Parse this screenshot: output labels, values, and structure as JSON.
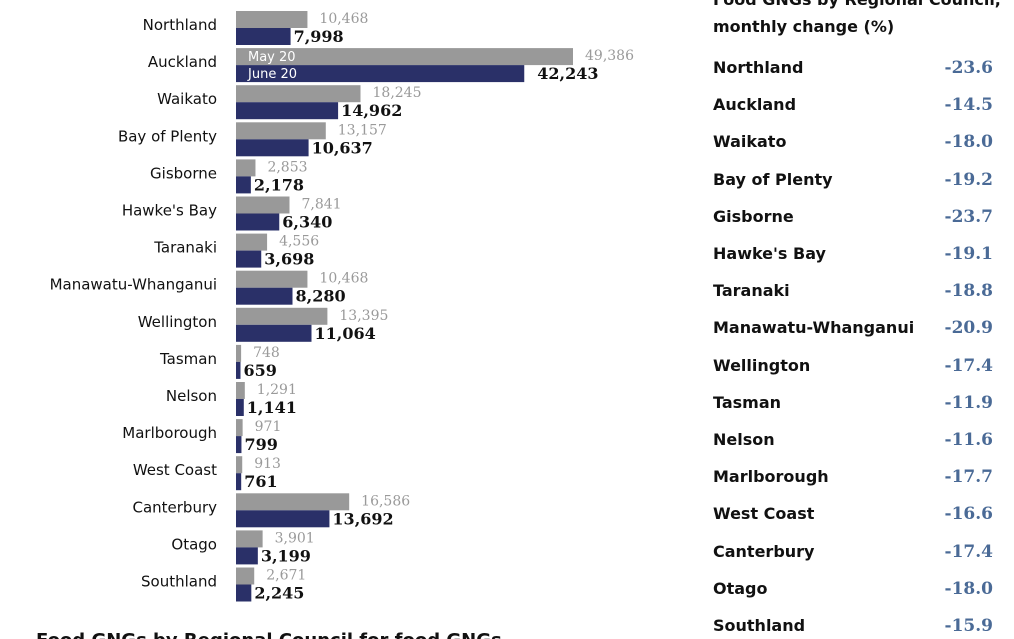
{
  "chart_data": {
    "type": "bar",
    "orientation": "horizontal",
    "categories": [
      "Northland",
      "Auckland",
      "Waikato",
      "Bay of Plenty",
      "Gisborne",
      "Hawke's Bay",
      "Taranaki",
      "Manawatu-Whanganui",
      "Wellington",
      "Tasman",
      "Nelson",
      "Marlborough",
      "West Coast",
      "Canterbury",
      "Otago",
      "Southland"
    ],
    "series": [
      {
        "name": "May 20",
        "values": [
          10468,
          49386,
          18245,
          13157,
          2853,
          7841,
          4556,
          10468,
          13395,
          748,
          1291,
          971,
          913,
          16586,
          3901,
          2671
        ],
        "labels": [
          "10,468",
          "49,386",
          "18,245",
          "13,157",
          "2,853",
          "7,841",
          "4,556",
          "10,468",
          "13,395",
          "748",
          "1,291",
          "971",
          "913",
          "16,586",
          "3,901",
          "2,671"
        ],
        "color": "#999999"
      },
      {
        "name": "June 20",
        "values": [
          7998,
          42243,
          14962,
          10637,
          2178,
          6340,
          3698,
          8280,
          11064,
          659,
          1141,
          799,
          761,
          13692,
          3199,
          2245
        ],
        "labels": [
          "7,998",
          "42,243",
          "14,962",
          "10,637",
          "2,178",
          "6,340",
          "3,698",
          "8,280",
          "11,064",
          "659",
          "1,141",
          "799",
          "761",
          "13,692",
          "3,199",
          "2,245"
        ],
        "color": "#2a3068"
      }
    ],
    "xlim": [
      0,
      49386
    ],
    "grid": false,
    "legend": "inside-bars"
  },
  "change_table": {
    "title": "Food GNGs by Regional Council,\nmonthly change (%)",
    "value_color": "#4a6a96",
    "rows": [
      {
        "name": "Northland",
        "value": "-23.6"
      },
      {
        "name": "Auckland",
        "value": "-14.5"
      },
      {
        "name": "Waikato",
        "value": "-18.0"
      },
      {
        "name": "Bay of Plenty",
        "value": "-19.2"
      },
      {
        "name": "Gisborne",
        "value": "-23.7"
      },
      {
        "name": "Hawke's Bay",
        "value": "-19.1"
      },
      {
        "name": "Taranaki",
        "value": "-18.8"
      },
      {
        "name": "Manawatu-Whanganui",
        "value": "-20.9"
      },
      {
        "name": "Wellington",
        "value": "-17.4"
      },
      {
        "name": "Tasman",
        "value": "-11.9"
      },
      {
        "name": "Nelson",
        "value": "-11.6"
      },
      {
        "name": "Marlborough",
        "value": "-17.7"
      },
      {
        "name": "West Coast",
        "value": "-16.6"
      },
      {
        "name": "Canterbury",
        "value": "-17.4"
      },
      {
        "name": "Otago",
        "value": "-18.0"
      },
      {
        "name": "Southland",
        "value": "-15.9"
      }
    ]
  },
  "footer": {
    "text": "Food GNGs by Regional Council for food GNGs"
  }
}
